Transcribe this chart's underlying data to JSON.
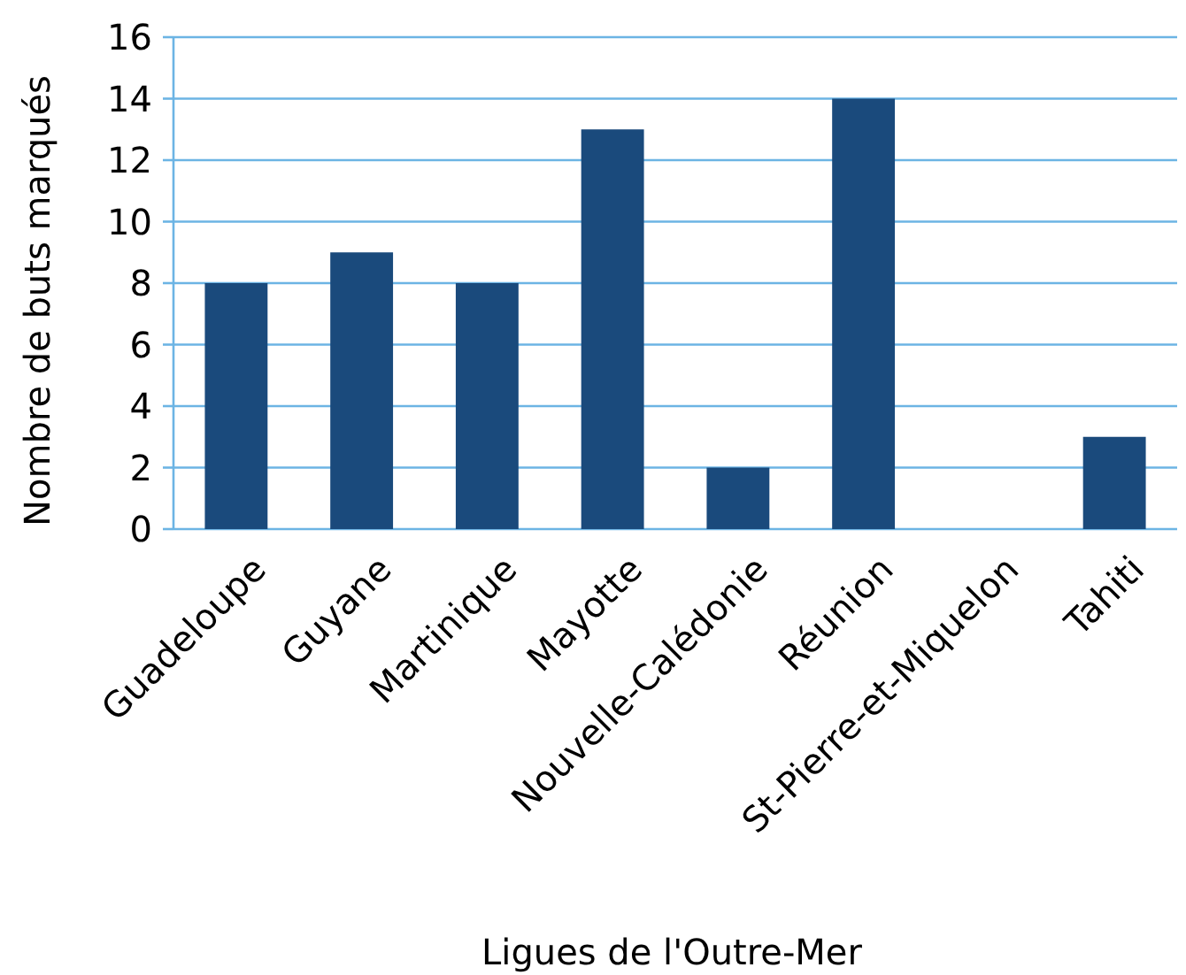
{
  "chart_data": {
    "type": "bar",
    "xlabel": "Ligues de l'Outre-Mer",
    "ylabel": "Nombre de buts marqués",
    "categories": [
      "Guadeloupe",
      "Guyane",
      "Martinique",
      "Mayotte",
      "Nouvelle-Calédonie",
      "Réunion",
      "St-Pierre-et-Miquelon",
      "Tahiti"
    ],
    "values": [
      8,
      9,
      8,
      13,
      2,
      14,
      0,
      3
    ],
    "color": "#1a4a7c",
    "ylim": [
      0,
      16
    ],
    "yticks": [
      0,
      2,
      4,
      6,
      8,
      10,
      12,
      14,
      16
    ],
    "grid": "y"
  }
}
